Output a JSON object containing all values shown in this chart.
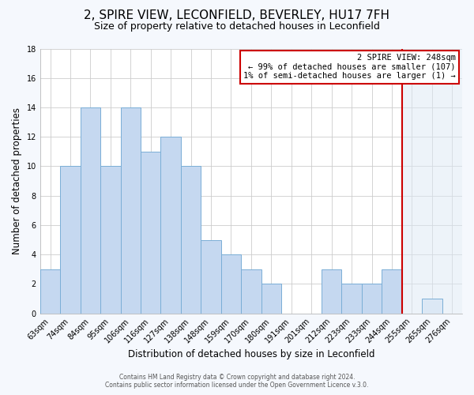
{
  "title": "2, SPIRE VIEW, LECONFIELD, BEVERLEY, HU17 7FH",
  "subtitle": "Size of property relative to detached houses in Leconfield",
  "xlabel": "Distribution of detached houses by size in Leconfield",
  "ylabel": "Number of detached properties",
  "bar_labels": [
    "63sqm",
    "74sqm",
    "84sqm",
    "95sqm",
    "106sqm",
    "116sqm",
    "127sqm",
    "138sqm",
    "148sqm",
    "159sqm",
    "170sqm",
    "180sqm",
    "191sqm",
    "201sqm",
    "212sqm",
    "223sqm",
    "233sqm",
    "244sqm",
    "255sqm",
    "265sqm",
    "276sqm"
  ],
  "bar_heights": [
    3,
    10,
    14,
    10,
    14,
    11,
    12,
    10,
    5,
    4,
    3,
    2,
    0,
    0,
    3,
    2,
    2,
    3,
    0,
    1,
    0
  ],
  "bar_color": "#c5d8f0",
  "bar_edge_color": "#7aaed6",
  "marker_line_color": "#cc0000",
  "annotation_line1": "2 SPIRE VIEW: 248sqm",
  "annotation_line2": "← 99% of detached houses are smaller (107)",
  "annotation_line3": "1% of semi-detached houses are larger (1) →",
  "annotation_box_color": "#cc0000",
  "highlight_color": "#dce8f5",
  "ylim": [
    0,
    18
  ],
  "yticks": [
    0,
    2,
    4,
    6,
    8,
    10,
    12,
    14,
    16,
    18
  ],
  "footer_line1": "Contains HM Land Registry data © Crown copyright and database right 2024.",
  "footer_line2": "Contains public sector information licensed under the Open Government Licence v.3.0.",
  "bg_color": "#f5f8fd",
  "plot_bg_color": "#ffffff",
  "grid_color": "#cccccc",
  "title_fontsize": 11,
  "subtitle_fontsize": 9,
  "axis_label_fontsize": 8.5,
  "tick_fontsize": 7,
  "annotation_fontsize": 7.5,
  "marker_bar_index": 17
}
